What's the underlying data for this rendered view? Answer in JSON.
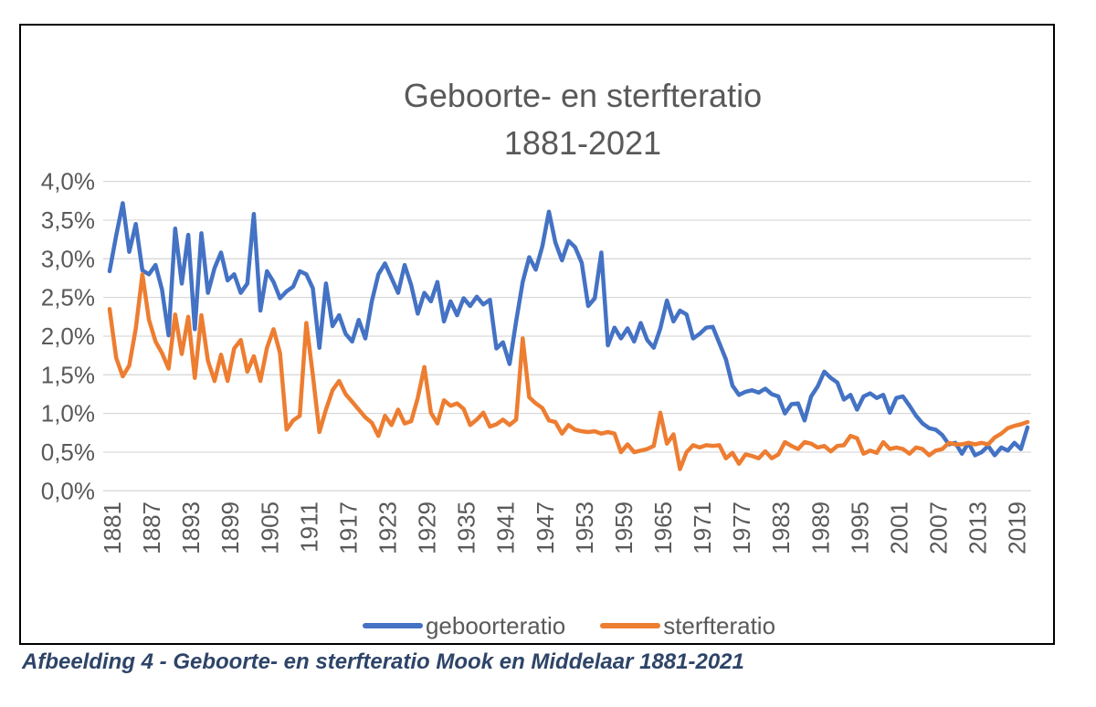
{
  "figure": {
    "caption": "Afbeelding 4 - Geboorte- en sterfteratio Mook en Middelaar 1881-2021",
    "caption_color": "#2E4468",
    "border_color": "#000000"
  },
  "chart_data": {
    "type": "line",
    "title": "Geboorte- en sterfteratio",
    "subtitle": "1881-2021",
    "title_color": "#595959",
    "axis_text_color": "#595959",
    "grid_color": "#D9D9D9",
    "grid": "horizontal",
    "legend_position": "bottom",
    "x_start_year": 1881,
    "x_end_year": 2021,
    "x_tick_step_years": 6,
    "x_tick_labels": [
      "1881",
      "1887",
      "1893",
      "1899",
      "1905",
      "1911",
      "1917",
      "1923",
      "1929",
      "1935",
      "1941",
      "1947",
      "1953",
      "1959",
      "1965",
      "1971",
      "1977",
      "1983",
      "1989",
      "1995",
      "2001",
      "2007",
      "2013",
      "2019"
    ],
    "ylim": [
      0,
      4.0
    ],
    "y_unit": "percent",
    "y_ticks": [
      {
        "value": 0.0,
        "label": "0,0%"
      },
      {
        "value": 0.5,
        "label": "0,5%"
      },
      {
        "value": 1.0,
        "label": "1,0%"
      },
      {
        "value": 1.5,
        "label": "1,5%"
      },
      {
        "value": 2.0,
        "label": "2,0%"
      },
      {
        "value": 2.5,
        "label": "2,5%"
      },
      {
        "value": 3.0,
        "label": "3,0%"
      },
      {
        "value": 3.5,
        "label": "3,5%"
      },
      {
        "value": 4.0,
        "label": "4,0%"
      }
    ],
    "series": [
      {
        "name": "geboorteratio",
        "color": "#4472C4",
        "values": [
          2.84,
          3.3,
          3.72,
          3.09,
          3.45,
          2.85,
          2.8,
          2.92,
          2.6,
          2.01,
          3.39,
          2.68,
          3.31,
          2.09,
          3.33,
          2.56,
          2.88,
          3.08,
          2.72,
          2.8,
          2.56,
          2.68,
          3.58,
          2.33,
          2.84,
          2.7,
          2.49,
          2.58,
          2.64,
          2.84,
          2.8,
          2.62,
          1.85,
          2.68,
          2.13,
          2.27,
          2.03,
          1.93,
          2.21,
          1.97,
          2.45,
          2.8,
          2.94,
          2.75,
          2.56,
          2.92,
          2.66,
          2.29,
          2.56,
          2.45,
          2.7,
          2.19,
          2.45,
          2.27,
          2.49,
          2.39,
          2.51,
          2.41,
          2.47,
          1.84,
          1.92,
          1.64,
          2.19,
          2.7,
          3.02,
          2.86,
          3.16,
          3.61,
          3.21,
          2.98,
          3.23,
          3.15,
          2.95,
          2.39,
          2.49,
          3.08,
          1.88,
          2.11,
          1.97,
          2.1,
          1.93,
          2.17,
          1.95,
          1.85,
          2.1,
          2.46,
          2.19,
          2.33,
          2.28,
          1.97,
          2.03,
          2.11,
          2.12,
          1.91,
          1.7,
          1.36,
          1.24,
          1.28,
          1.3,
          1.27,
          1.32,
          1.25,
          1.22,
          1.0,
          1.12,
          1.13,
          0.91,
          1.22,
          1.35,
          1.54,
          1.46,
          1.4,
          1.18,
          1.24,
          1.05,
          1.22,
          1.26,
          1.2,
          1.24,
          1.01,
          1.2,
          1.22,
          1.1,
          0.97,
          0.87,
          0.81,
          0.79,
          0.72,
          0.6,
          0.62,
          0.48,
          0.62,
          0.46,
          0.5,
          0.58,
          0.46,
          0.56,
          0.52,
          0.62,
          0.54,
          0.82
        ]
      },
      {
        "name": "sterfteratio",
        "color": "#ED7D31",
        "values": [
          2.35,
          1.72,
          1.48,
          1.62,
          2.1,
          2.8,
          2.21,
          1.93,
          1.78,
          1.58,
          2.28,
          1.77,
          2.25,
          1.46,
          2.27,
          1.68,
          1.42,
          1.76,
          1.42,
          1.84,
          1.95,
          1.54,
          1.74,
          1.42,
          1.85,
          2.09,
          1.78,
          0.79,
          0.91,
          0.97,
          2.17,
          1.5,
          0.76,
          1.05,
          1.3,
          1.42,
          1.25,
          1.15,
          1.05,
          0.95,
          0.88,
          0.71,
          0.97,
          0.85,
          1.05,
          0.87,
          0.9,
          1.2,
          1.6,
          1.01,
          0.87,
          1.17,
          1.1,
          1.13,
          1.06,
          0.85,
          0.92,
          1.01,
          0.83,
          0.86,
          0.92,
          0.85,
          0.92,
          1.97,
          1.21,
          1.13,
          1.07,
          0.91,
          0.89,
          0.74,
          0.85,
          0.79,
          0.77,
          0.76,
          0.77,
          0.74,
          0.76,
          0.74,
          0.5,
          0.6,
          0.5,
          0.52,
          0.54,
          0.58,
          1.01,
          0.61,
          0.73,
          0.28,
          0.5,
          0.59,
          0.56,
          0.59,
          0.58,
          0.59,
          0.42,
          0.49,
          0.35,
          0.47,
          0.45,
          0.42,
          0.51,
          0.42,
          0.47,
          0.63,
          0.58,
          0.54,
          0.63,
          0.61,
          0.56,
          0.58,
          0.51,
          0.58,
          0.59,
          0.71,
          0.68,
          0.48,
          0.52,
          0.49,
          0.63,
          0.54,
          0.56,
          0.54,
          0.48,
          0.56,
          0.54,
          0.46,
          0.52,
          0.54,
          0.62,
          0.6,
          0.6,
          0.62,
          0.6,
          0.62,
          0.6,
          0.69,
          0.74,
          0.81,
          0.84,
          0.86,
          0.89
        ]
      }
    ]
  }
}
